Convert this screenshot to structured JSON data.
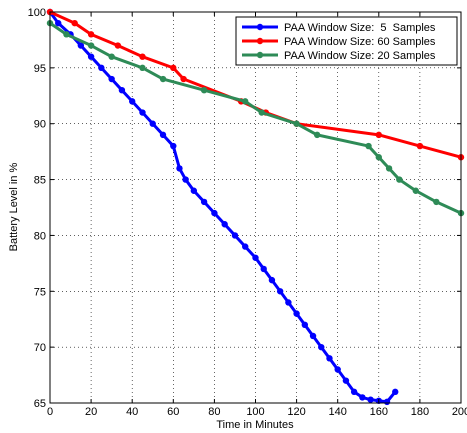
{
  "chart_data": {
    "type": "line",
    "xlabel": "Time in Minutes",
    "ylabel": "Battery Level in %",
    "xlim": [
      0,
      200
    ],
    "ylim": [
      65,
      100
    ],
    "xticks": [
      "0",
      "20",
      "40",
      "60",
      "80",
      "100",
      "120",
      "140",
      "160",
      "180",
      "200"
    ],
    "yticks": [
      "65",
      "70",
      "75",
      "80",
      "85",
      "90",
      "95",
      "100"
    ],
    "grid": true,
    "legend_position": "top-right",
    "series": [
      {
        "name": "PAA Window Size:  5  Samples",
        "color": "#0000ff",
        "x": [
          0,
          4,
          10,
          15,
          20,
          25,
          30,
          35,
          40,
          45,
          50,
          55,
          60,
          63,
          66,
          70,
          75,
          80,
          85,
          90,
          95,
          100,
          104,
          108,
          112,
          116,
          120,
          124,
          128,
          132,
          136,
          140,
          144,
          148,
          152,
          156,
          160,
          164,
          168
        ],
        "y": [
          100,
          99,
          98,
          97,
          96,
          95,
          94,
          93,
          92,
          91,
          90,
          89,
          88,
          86,
          85,
          84,
          83,
          82,
          81,
          80,
          79,
          78,
          77,
          76,
          75,
          74,
          73,
          72,
          71,
          70,
          69,
          68,
          67,
          66,
          65.5,
          65.3,
          65.2,
          65.1,
          66
        ]
      },
      {
        "name": "PAA Window Size: 60 Samples",
        "color": "#ff0000",
        "x": [
          0,
          12,
          20,
          33,
          45,
          60,
          65,
          93,
          105,
          120,
          160,
          180,
          200
        ],
        "y": [
          100,
          99,
          98,
          97,
          96,
          95,
          94,
          92,
          91,
          90,
          89,
          88,
          87
        ]
      },
      {
        "name": "PAA Window Size: 20 Samples",
        "color": "#2e8b57",
        "x": [
          0,
          8,
          20,
          30,
          45,
          55,
          75,
          95,
          103,
          120,
          130,
          155,
          160,
          165,
          170,
          178,
          188,
          200
        ],
        "y": [
          99,
          98,
          97,
          96,
          95,
          94,
          93,
          92,
          91,
          90,
          89,
          88,
          87,
          86,
          85,
          84,
          83,
          82
        ]
      }
    ]
  }
}
